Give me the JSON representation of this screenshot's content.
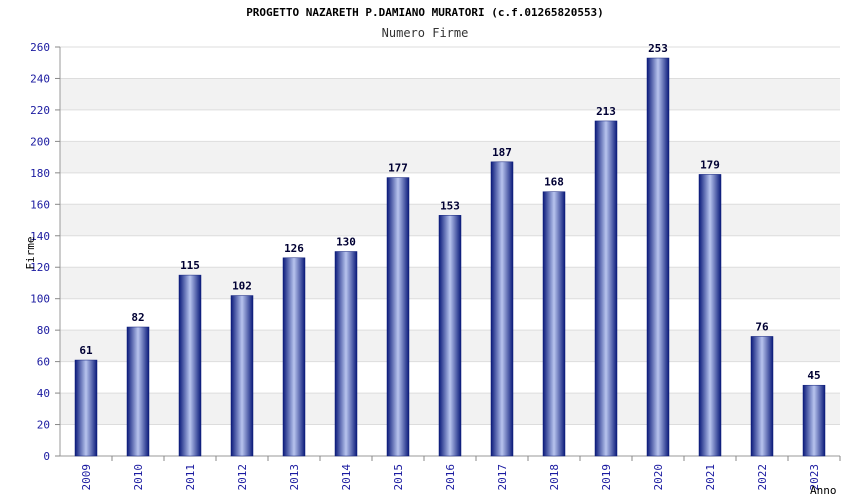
{
  "chart_data": {
    "type": "bar",
    "title": "PROGETTO NAZARETH P.DAMIANO MURATORI (c.f.01265820553)",
    "subtitle": "Numero Firme",
    "xlabel": "Anno",
    "ylabel": "Firme",
    "categories": [
      "2009",
      "2010",
      "2011",
      "2012",
      "2013",
      "2014",
      "2015",
      "2016",
      "2017",
      "2018",
      "2019",
      "2020",
      "2021",
      "2022",
      "2023"
    ],
    "values": [
      61,
      82,
      115,
      102,
      126,
      130,
      177,
      153,
      187,
      168,
      213,
      253,
      179,
      76,
      45
    ],
    "ylim": [
      0,
      260
    ],
    "ytick_step": 20,
    "grid": "horizontal bands",
    "colors": {
      "bar_dark": "#0a1a7a",
      "bar_light": "#b8c4ee",
      "band": "#f2f2f2",
      "grid": "#dddddd"
    }
  }
}
